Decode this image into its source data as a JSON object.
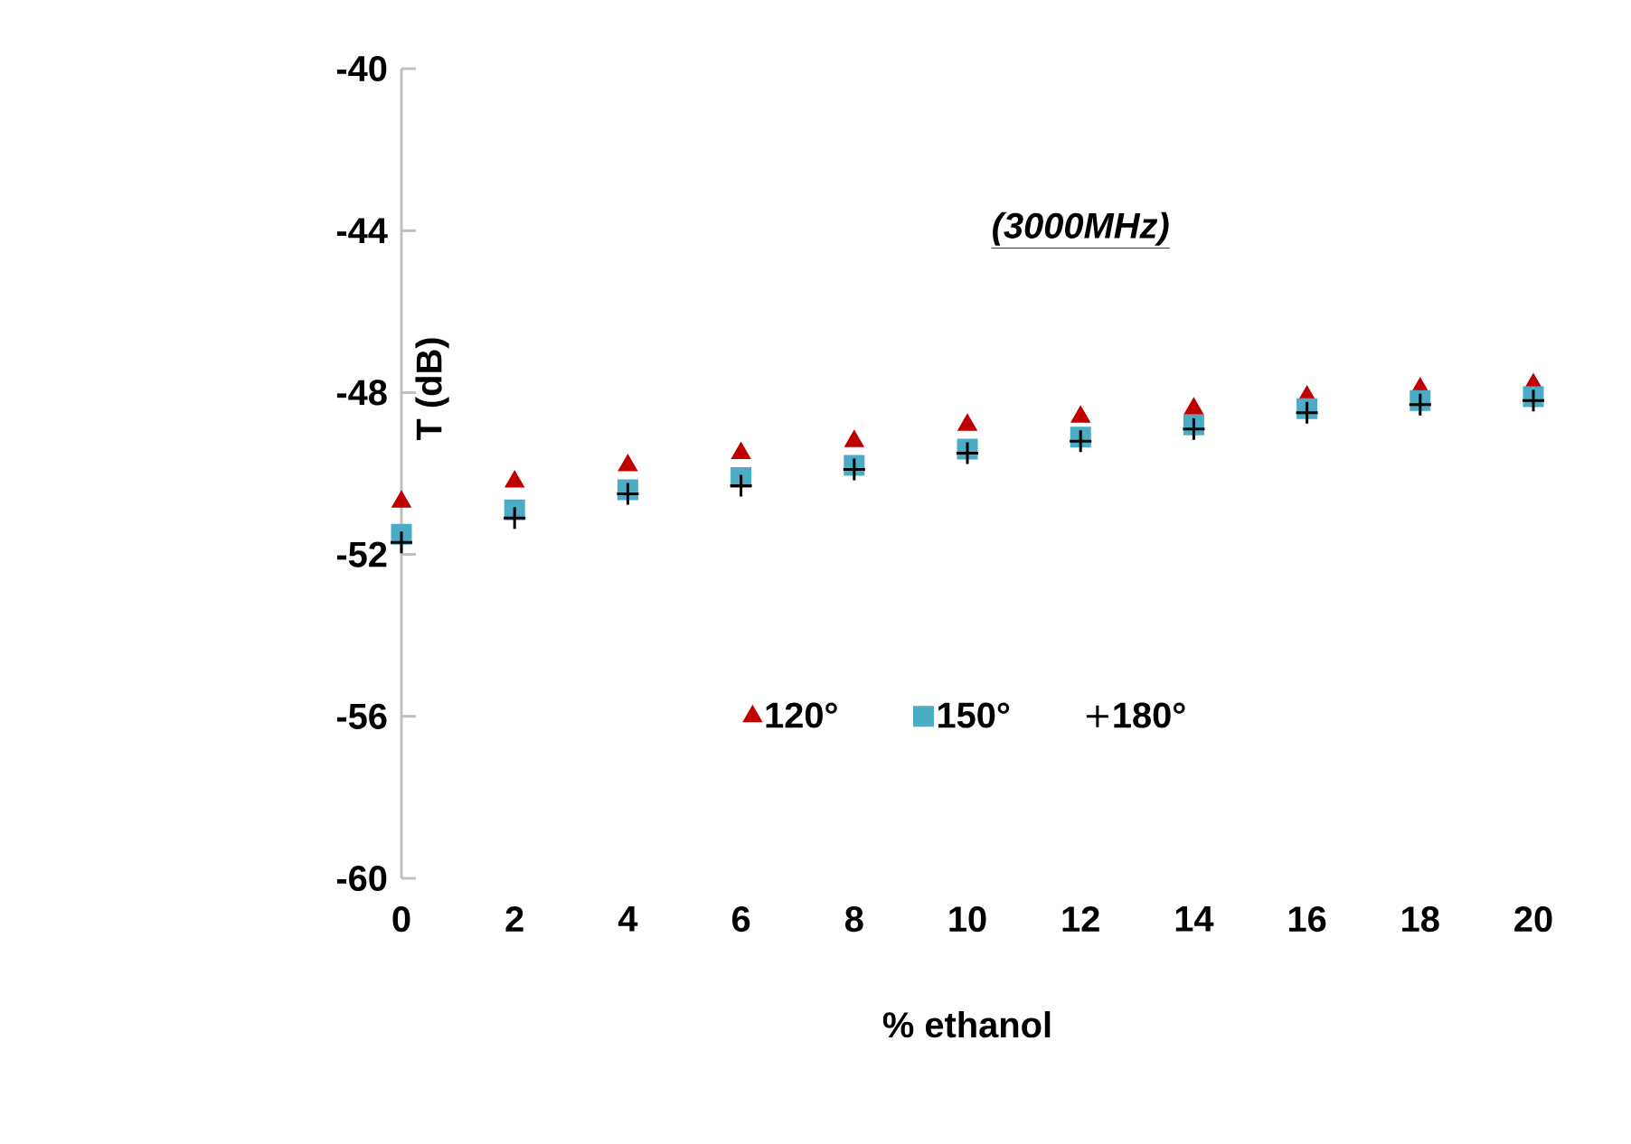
{
  "chart_data": {
    "type": "scatter",
    "xlabel": "% ethanol",
    "ylabel": "T (dB)",
    "annotations": [
      "(3000MHz)"
    ],
    "x": [
      0,
      2,
      4,
      6,
      8,
      10,
      12,
      14,
      16,
      18,
      20
    ],
    "series": [
      {
        "name": "120°",
        "color": "#c00000",
        "marker": "triangle",
        "values": [
          -50.7,
          -50.2,
          -49.8,
          -49.5,
          -49.2,
          -48.8,
          -48.6,
          -48.4,
          -48.1,
          -47.9,
          -47.8
        ]
      },
      {
        "name": "150°",
        "color": "#4bacc6",
        "marker": "square",
        "values": [
          -51.5,
          -50.9,
          -50.4,
          -50.1,
          -49.8,
          -49.4,
          -49.1,
          -48.8,
          -48.4,
          -48.2,
          -48.1
        ]
      },
      {
        "name": "180°",
        "color": "#000000",
        "marker": "cross",
        "values": [
          -51.7,
          -51.1,
          -50.5,
          -50.3,
          -49.9,
          -49.5,
          -49.2,
          -48.9,
          -48.5,
          -48.3,
          -48.2
        ]
      }
    ],
    "xlim": [
      0,
      20
    ],
    "xticks": [
      0,
      2,
      4,
      6,
      8,
      10,
      12,
      14,
      16,
      18,
      20
    ],
    "ylim": [
      -60,
      -40
    ],
    "yticks": [
      -60,
      -56,
      -52,
      -48,
      -44,
      -40
    ],
    "grid": false,
    "legend": "bottom"
  }
}
